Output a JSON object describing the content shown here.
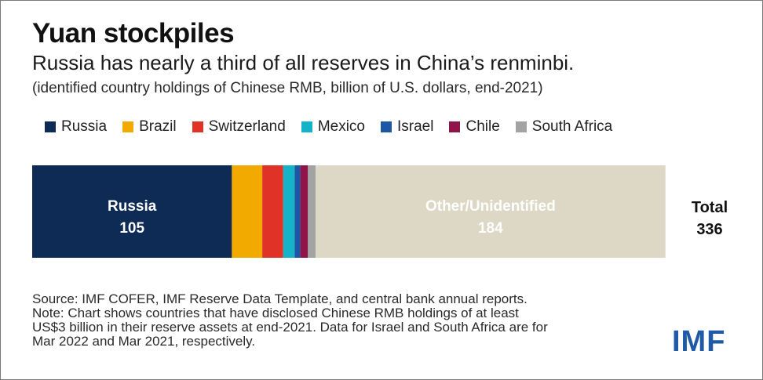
{
  "title": "Yuan stockpiles",
  "subtitle": "Russia has nearly a third of all reserves in China’s renminbi.",
  "note": "(identified country holdings of Chinese RMB, billion of U.S. dollars, end-2021)",
  "legend": [
    {
      "label": "Russia",
      "color": "#0e2b55"
    },
    {
      "label": "Brazil",
      "color": "#f2a900"
    },
    {
      "label": "Switzerland",
      "color": "#e03226"
    },
    {
      "label": "Mexico",
      "color": "#14b3c7"
    },
    {
      "label": "Israel",
      "color": "#1c56a5"
    },
    {
      "label": "Chile",
      "color": "#8e1449"
    },
    {
      "label": "South Africa",
      "color": "#a3a3a3"
    }
  ],
  "chart_data": {
    "type": "bar",
    "orientation": "horizontal-stacked",
    "unit": "billion of U.S. dollars",
    "series": [
      {
        "name": "Russia",
        "value": 105,
        "color": "#0e2b55",
        "label": "Russia",
        "value_label": "105"
      },
      {
        "name": "Brazil",
        "value": 16,
        "color": "#f2a900"
      },
      {
        "name": "Switzerland",
        "value": 11,
        "color": "#e03226"
      },
      {
        "name": "Mexico",
        "value": 6,
        "color": "#14b3c7"
      },
      {
        "name": "Israel",
        "value": 3,
        "color": "#1c56a5"
      },
      {
        "name": "Chile",
        "value": 4,
        "color": "#8e1449"
      },
      {
        "name": "South Africa",
        "value": 4,
        "color": "#a3a3a3"
      },
      {
        "name": "Other/Unidentified",
        "value": 184,
        "color": "#ddd8c6",
        "label": "Other/Unidentified",
        "value_label": "184"
      }
    ],
    "total_label": "Total",
    "total_value": "336",
    "xlim": [
      0,
      336
    ]
  },
  "source_lines": [
    "Source: IMF COFER, IMF Reserve Data Template, and central bank annual reports.",
    "Note: Chart shows countries that have disclosed Chinese RMB holdings of at least",
    "US$3 billion in their reserve assets at end-2021. Data for Israel and South Africa are for",
    "Mar 2022 and Mar 2021, respectively."
  ],
  "logo_text": "IMF"
}
